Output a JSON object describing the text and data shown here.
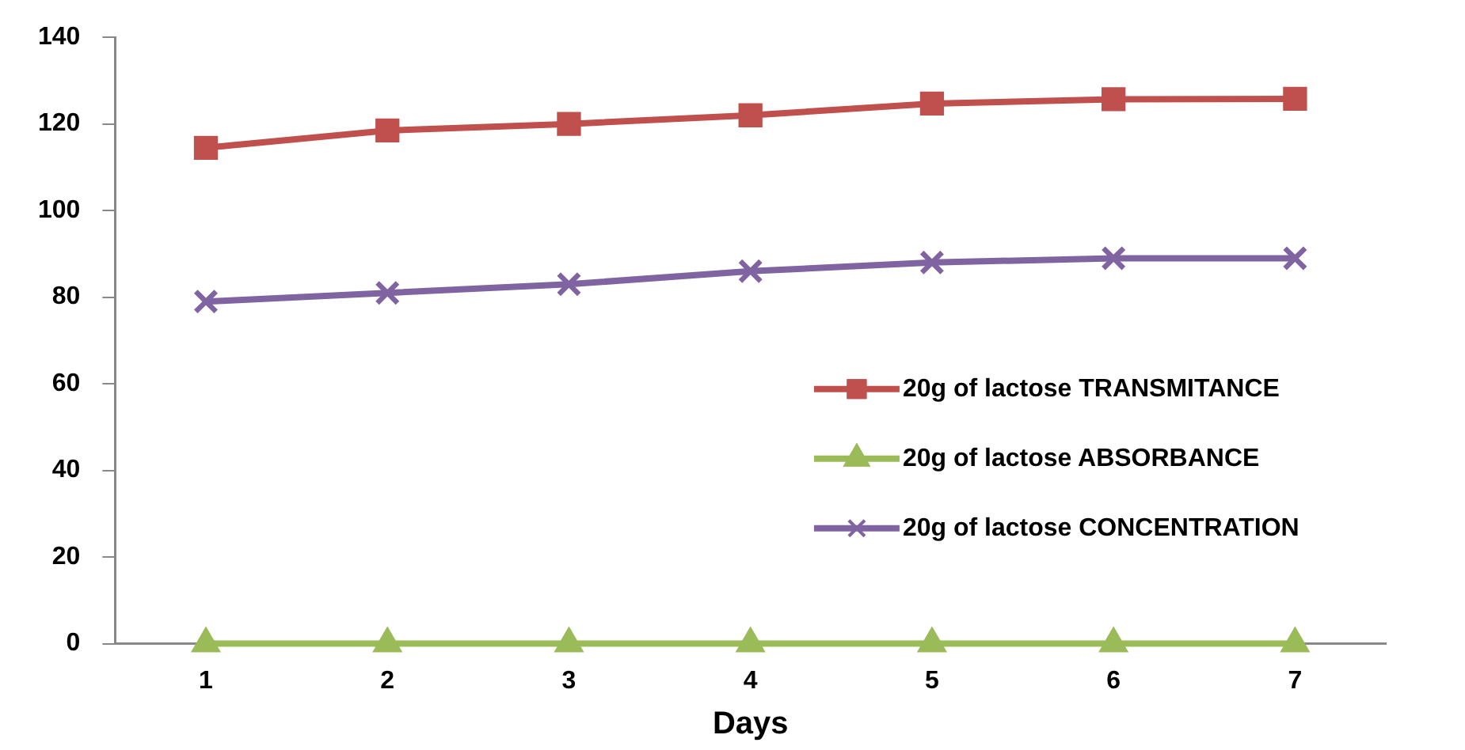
{
  "chart_data": {
    "type": "line",
    "xlabel": "Days",
    "categories": [
      "1",
      "2",
      "3",
      "4",
      "5",
      "6",
      "7"
    ],
    "ylim": [
      0,
      140
    ],
    "yticks": [
      0,
      20,
      40,
      60,
      80,
      100,
      120,
      140
    ],
    "grid": false,
    "legend": "right",
    "line_style": "solid",
    "series": [
      {
        "name": "20g of lactose TRANSMITANCE",
        "color": "#c0504d",
        "marker": "square",
        "values": [
          114.5,
          118.5,
          120,
          122,
          124.7,
          125.7,
          125.8
        ]
      },
      {
        "name": "20g of lactose ABSORBANCE",
        "color": "#9bbb59",
        "marker": "triangle",
        "values": [
          0,
          0,
          0,
          0,
          0,
          0,
          0
        ]
      },
      {
        "name": "20g of lactose CONCENTRATION",
        "color": "#8064a2",
        "marker": "cross",
        "values": [
          79,
          81,
          83,
          86,
          88,
          89,
          89
        ]
      }
    ]
  }
}
